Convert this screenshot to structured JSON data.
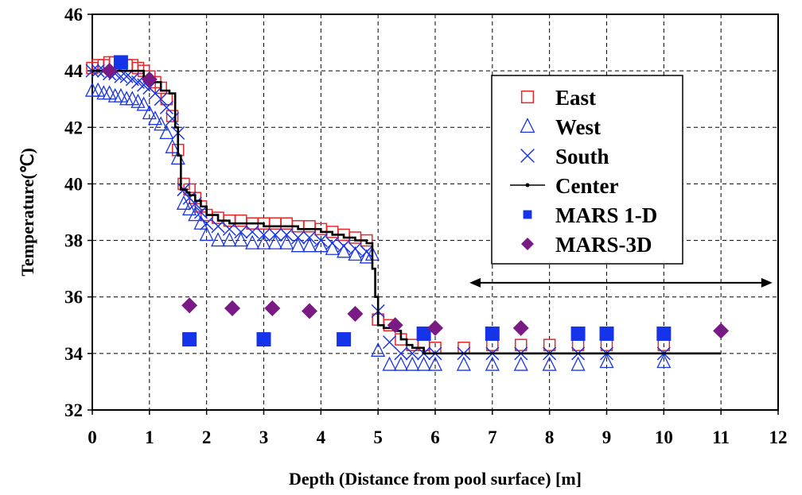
{
  "chart_data": {
    "type": "scatter",
    "xlabel": "Depth (Distance from pool surface) [m]",
    "ylabel": "Temperature(℃)",
    "xlim": [
      0,
      12
    ],
    "ylim": [
      32,
      46
    ],
    "xticks": [
      0,
      1,
      2,
      3,
      4,
      5,
      6,
      7,
      8,
      9,
      10,
      11,
      12
    ],
    "yticks": [
      32,
      34,
      36,
      38,
      40,
      42,
      44,
      46
    ],
    "grid": true,
    "legend_position": "right",
    "series": [
      {
        "name": "East",
        "marker": "square-open",
        "color": "#e8262a",
        "x": [
          0,
          0.1,
          0.2,
          0.3,
          0.4,
          0.5,
          0.6,
          0.7,
          0.8,
          0.9,
          1.0,
          1.1,
          1.2,
          1.3,
          1.4,
          1.5,
          1.6,
          1.7,
          1.8,
          1.9,
          2.0,
          2.2,
          2.4,
          2.6,
          2.8,
          3.0,
          3.2,
          3.4,
          3.6,
          3.8,
          4.0,
          4.2,
          4.4,
          4.6,
          4.8,
          5.0,
          5.2,
          5.4,
          5.6,
          5.8,
          6.0,
          6.5,
          7.0,
          7.5,
          8.0,
          8.5,
          9.0,
          10.0
        ],
        "y": [
          44.1,
          44.2,
          44.2,
          44.3,
          44.3,
          44.3,
          44.2,
          44.2,
          44.1,
          44.0,
          43.8,
          43.6,
          43.4,
          43.0,
          42.4,
          41.2,
          40.0,
          39.8,
          39.5,
          39.2,
          38.9,
          38.8,
          38.7,
          38.7,
          38.6,
          38.6,
          38.6,
          38.6,
          38.5,
          38.5,
          38.4,
          38.3,
          38.2,
          38.1,
          38.0,
          35.2,
          35.0,
          34.5,
          34.3,
          34.3,
          34.2,
          34.2,
          34.3,
          34.3,
          34.3,
          34.3,
          34.3,
          34.3
        ]
      },
      {
        "name": "West",
        "marker": "triangle-open",
        "color": "#1a35e6",
        "x": [
          0,
          0.1,
          0.2,
          0.3,
          0.4,
          0.5,
          0.6,
          0.7,
          0.8,
          0.9,
          1.0,
          1.1,
          1.2,
          1.3,
          1.4,
          1.5,
          1.6,
          1.7,
          1.8,
          1.9,
          2.0,
          2.2,
          2.4,
          2.6,
          2.8,
          3.0,
          3.2,
          3.4,
          3.6,
          3.8,
          4.0,
          4.2,
          4.4,
          4.6,
          4.8,
          4.9,
          5.0,
          5.2,
          5.4,
          5.6,
          5.8,
          6.0,
          6.5,
          7.0,
          7.5,
          8.0,
          8.5,
          9.0,
          10.0
        ],
        "y": [
          43.3,
          43.3,
          43.2,
          43.2,
          43.1,
          43.1,
          43.0,
          43.0,
          42.9,
          42.8,
          42.5,
          42.3,
          42.1,
          41.8,
          41.3,
          40.9,
          39.3,
          39.1,
          38.9,
          38.6,
          38.2,
          38.0,
          38.0,
          38.0,
          37.9,
          37.9,
          37.9,
          37.9,
          37.8,
          37.8,
          37.8,
          37.7,
          37.6,
          37.5,
          37.4,
          37.5,
          34.1,
          33.6,
          33.6,
          33.6,
          33.6,
          33.6,
          33.6,
          33.6,
          33.6,
          33.6,
          33.6,
          33.7,
          33.7
        ]
      },
      {
        "name": "South",
        "marker": "x",
        "color": "#1a35e6",
        "x": [
          0,
          0.1,
          0.2,
          0.3,
          0.4,
          0.5,
          0.6,
          0.7,
          0.8,
          0.9,
          1.0,
          1.1,
          1.2,
          1.3,
          1.4,
          1.5,
          1.6,
          1.7,
          1.8,
          1.9,
          2.0,
          2.2,
          2.4,
          2.6,
          2.8,
          3.0,
          3.2,
          3.4,
          3.6,
          3.8,
          4.0,
          4.2,
          4.4,
          4.6,
          4.8,
          5.0,
          5.2,
          5.4,
          5.6,
          5.8,
          6.0,
          6.5,
          7.0,
          7.5,
          8.0,
          8.5,
          9.0,
          10.0
        ],
        "y": [
          44.0,
          44.0,
          44.0,
          43.9,
          43.9,
          43.8,
          43.8,
          43.7,
          43.6,
          43.5,
          43.4,
          43.2,
          43.0,
          42.7,
          42.3,
          41.8,
          39.8,
          39.5,
          39.3,
          39.0,
          38.6,
          38.5,
          38.4,
          38.3,
          38.3,
          38.2,
          38.2,
          38.2,
          38.1,
          38.1,
          38.0,
          37.9,
          37.8,
          37.7,
          37.6,
          35.5,
          34.4,
          34.0,
          34.0,
          34.0,
          34.0,
          34.0,
          34.0,
          34.0,
          34.0,
          34.0,
          34.0,
          34.0
        ]
      },
      {
        "name": "Center",
        "marker": "line",
        "color": "#000000",
        "x": [
          0,
          0.3,
          0.5,
          0.7,
          0.9,
          1.0,
          1.2,
          1.35,
          1.45,
          1.5,
          1.55,
          1.6,
          1.65,
          1.7,
          1.8,
          1.9,
          2.0,
          2.2,
          2.4,
          2.6,
          2.8,
          3.0,
          3.2,
          3.4,
          3.6,
          3.8,
          4.0,
          4.2,
          4.4,
          4.6,
          4.7,
          4.8,
          4.88,
          4.9,
          4.95,
          5.0,
          5.1,
          5.3,
          5.4,
          5.5,
          5.6,
          5.8,
          6.0,
          7.0,
          8.0,
          9.0,
          10.0,
          11.0
        ],
        "y": [
          44.0,
          44.0,
          44.0,
          44.0,
          43.8,
          43.6,
          43.3,
          43.2,
          42.0,
          41.0,
          39.8,
          39.8,
          39.7,
          39.6,
          39.4,
          39.2,
          38.9,
          38.7,
          38.6,
          38.6,
          38.6,
          38.5,
          38.5,
          38.5,
          38.4,
          38.4,
          38.3,
          38.2,
          38.1,
          38.0,
          38.0,
          37.9,
          37.9,
          37.0,
          36.0,
          35.0,
          34.9,
          34.8,
          34.5,
          34.3,
          34.2,
          34.0,
          34.0,
          34.0,
          34.0,
          34.0,
          34.0,
          34.0
        ]
      },
      {
        "name": "MARS 1-D",
        "marker": "square-filled",
        "color": "#1533e8",
        "x": [
          0.5,
          1.7,
          3.0,
          4.4,
          5.8,
          7.0,
          8.5,
          9.0,
          10.0
        ],
        "y": [
          44.3,
          34.5,
          34.5,
          34.5,
          34.7,
          34.7,
          34.7,
          34.7,
          34.7
        ]
      },
      {
        "name": "MARS-3D",
        "marker": "diamond-filled",
        "color": "#7a1a85",
        "x": [
          0.3,
          1.0,
          1.7,
          2.45,
          3.15,
          3.8,
          4.6,
          5.3,
          6.0,
          7.5,
          11.0
        ],
        "y": [
          44.0,
          43.7,
          35.7,
          35.6,
          35.6,
          35.5,
          35.4,
          35.0,
          34.9,
          34.9,
          34.8
        ]
      }
    ],
    "annotations": [
      {
        "type": "double-arrow",
        "x": [
          6.6,
          11.9
        ],
        "y": 36.5
      }
    ]
  }
}
